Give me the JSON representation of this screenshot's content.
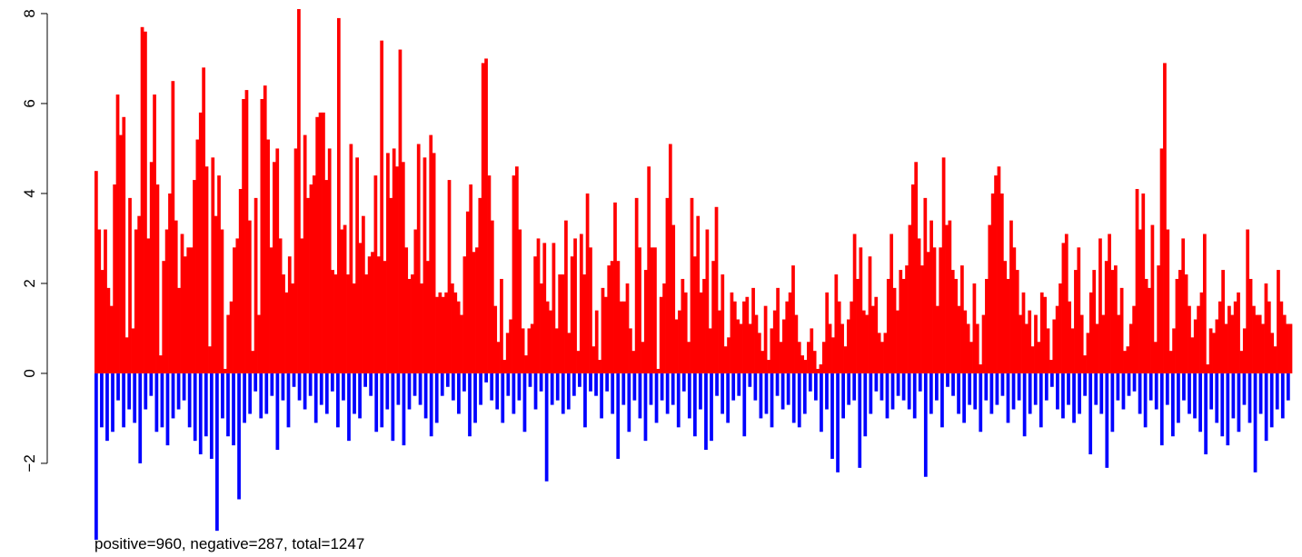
{
  "caption": "positive=960, negative=287, total=1247",
  "chart_data": {
    "type": "bar",
    "title": "",
    "xlabel": "",
    "ylabel": "",
    "ylim": [
      -3.8,
      8.1
    ],
    "y_ticks": [
      -2,
      0,
      2,
      4,
      6,
      8
    ],
    "y_tick_labels": [
      "−2",
      "0",
      "2",
      "4",
      "6",
      "8"
    ],
    "x_axis_shown": false,
    "grid": false,
    "colors": {
      "positive": "#ff0000",
      "negative": "#0000ff"
    },
    "n_bars": 1247,
    "positive_count": 960,
    "negative_count": 287,
    "series": [
      {
        "name": "positive",
        "values": [
          4.5,
          3.2,
          2.3,
          3.2,
          1.9,
          1.5,
          4.2,
          6.2,
          5.3,
          5.7,
          0.8,
          3.9,
          1.0,
          3.2,
          3.5,
          7.7,
          7.6,
          3.0,
          4.7,
          6.2,
          4.2,
          0.4,
          2.5,
          3.2,
          4.0,
          6.5,
          3.4,
          1.9,
          3.1,
          2.6,
          2.8,
          2.8,
          4.3,
          5.2,
          5.8,
          6.8,
          4.6,
          0.6,
          4.8,
          3.5,
          4.4,
          3.2,
          0.1,
          1.3,
          1.6,
          2.8,
          3.0,
          4.1,
          6.1,
          6.3,
          3.4,
          0.5,
          3.9,
          1.3,
          6.1,
          6.4,
          5.2,
          2.8,
          4.7,
          5.0,
          3.0,
          2.2,
          1.8,
          2.6,
          2.0,
          5.0,
          8.1,
          3.0,
          5.3,
          3.9,
          4.2,
          4.4,
          5.7,
          5.8,
          5.8,
          4.3,
          5.0,
          2.3,
          2.2,
          7.9,
          3.2,
          3.3,
          2.2,
          5.1,
          2.0,
          4.8,
          2.9,
          3.5,
          2.2,
          2.6,
          2.7,
          4.4,
          2.6,
          7.4,
          2.5,
          4.9,
          3.9,
          5.0,
          4.6,
          7.2,
          4.7,
          2.8,
          2.1,
          2.2,
          3.2,
          5.1,
          2.0,
          4.8,
          2.5,
          5.3,
          4.9,
          1.7,
          1.8,
          1.7,
          1.8,
          4.3,
          2.0,
          1.8,
          1.6,
          1.3,
          2.6,
          3.6,
          4.2,
          2.7,
          2.8,
          3.9,
          6.9,
          7.0,
          4.4,
          3.4,
          1.5,
          0.7,
          2.1,
          0.3,
          0.9,
          1.2,
          4.4,
          4.6,
          3.2,
          1.0,
          0.4,
          1.0,
          1.1,
          2.6,
          3.0,
          2.0,
          2.9,
          1.6,
          1.4,
          2.9,
          1.0,
          2.2,
          2.2,
          3.4,
          0.9,
          2.6,
          3.0,
          0.5,
          3.1,
          2.2,
          4.0,
          2.8,
          0.6,
          1.4,
          0.3,
          1.9,
          1.7,
          2.4,
          2.5,
          3.8,
          2.5,
          1.6,
          1.6,
          2.0,
          1.0,
          0.5,
          3.9,
          2.8,
          0.7,
          2.3,
          4.6,
          2.8,
          2.8,
          0.1,
          1.7,
          2.0,
          3.9,
          5.1,
          3.3,
          1.2,
          1.4,
          2.1,
          1.8,
          0.7,
          3.9,
          2.6,
          3.5,
          1.8,
          2.1,
          3.2,
          1.0,
          2.5,
          3.7,
          1.4,
          2.2,
          0.6,
          0.8,
          1.8,
          1.6,
          1.2,
          1.1,
          1.6,
          1.7,
          1.1,
          1.9,
          1.3,
          0.9,
          0.5,
          1.5,
          0.3,
          1.0,
          1.4,
          1.9,
          0.7,
          1.2,
          1.6,
          1.8,
          2.4,
          1.3,
          0.7,
          0.4,
          0.3,
          0.7,
          1.0,
          0.5,
          0.1,
          0.2,
          0.7,
          1.8,
          1.1,
          0.8,
          2.2,
          1.6,
          1.1,
          0.6,
          1.2,
          1.6,
          3.1,
          2.1,
          2.8,
          1.4,
          1.3,
          2.6,
          1.5,
          1.7,
          0.9,
          0.7,
          0.9,
          2.1,
          3.1,
          1.9,
          1.4,
          2.3,
          2.1,
          2.4,
          3.3,
          4.2,
          4.7,
          3.0,
          2.4,
          3.9,
          2.7,
          3.4,
          2.8,
          1.5,
          2.8,
          4.8,
          3.3,
          3.4,
          2.3,
          2.1,
          1.5,
          2.4,
          1.4,
          1.1,
          0.7,
          2.0,
          1.1,
          0.2,
          1.3,
          2.1,
          3.3,
          4.0,
          4.4,
          4.6,
          4.0,
          2.5,
          2.1,
          3.4,
          2.8,
          2.3,
          1.3,
          1.8,
          1.1,
          1.4,
          0.6,
          1.3,
          0.7,
          1.8,
          1.7,
          1.0,
          0.3,
          1.2,
          1.5,
          2.0,
          2.9,
          3.1,
          1.6,
          1.0,
          2.3,
          2.8,
          1.3,
          0.4,
          0.9,
          1.8,
          2.3,
          1.1,
          3.0,
          1.3,
          2.5,
          3.1,
          2.3,
          2.4,
          1.3,
          1.9,
          0.5,
          0.6,
          1.1,
          1.5,
          4.1,
          3.2,
          4.0,
          2.1,
          1.9,
          3.3,
          0.7,
          2.4,
          5.0,
          6.9,
          3.2,
          0.5,
          1.0,
          2.1,
          2.3,
          3.0,
          2.2,
          1.5,
          0.8,
          1.2,
          1.5,
          1.8,
          3.1,
          0.2,
          1.0,
          0.9,
          1.2,
          1.6,
          2.3,
          1.1,
          1.5,
          1.3,
          1.6,
          1.8,
          0.5,
          1.0,
          3.2,
          2.1,
          1.5,
          1.3,
          1.3,
          1.1,
          2.0,
          1.6,
          0.9,
          0.6,
          2.3,
          1.6,
          1.3,
          1.1,
          1.1
        ]
      },
      {
        "name": "negative",
        "values": [
          -3.7,
          -1.2,
          -1.5,
          -1.3,
          -0.6,
          -1.2,
          -0.8,
          -1.1,
          -2.0,
          -0.8,
          -0.5,
          -1.3,
          -1.2,
          -1.6,
          -1.0,
          -0.8,
          -0.6,
          -1.2,
          -1.5,
          -1.8,
          -1.4,
          -1.9,
          -3.5,
          -1.0,
          -1.4,
          -1.6,
          -2.8,
          -1.1,
          -0.9,
          -0.4,
          -1.0,
          -0.9,
          -0.5,
          -1.7,
          -0.6,
          -1.2,
          -0.3,
          -0.6,
          -0.8,
          -0.5,
          -1.1,
          -0.7,
          -0.9,
          -0.4,
          -1.2,
          -0.6,
          -1.5,
          -0.9,
          -1.0,
          -0.3,
          -0.5,
          -1.3,
          -1.2,
          -0.8,
          -1.5,
          -0.7,
          -1.6,
          -0.8,
          -0.5,
          -0.7,
          -1.0,
          -1.4,
          -1.1,
          -0.5,
          -0.3,
          -0.6,
          -0.9,
          -0.4,
          -1.4,
          -1.1,
          -0.7,
          -0.2,
          -0.6,
          -0.8,
          -1.1,
          -0.5,
          -0.9,
          -0.6,
          -1.3,
          -0.3,
          -0.8,
          -0.4,
          -2.4,
          -0.7,
          -0.6,
          -0.9,
          -0.8,
          -0.5,
          -0.3,
          -1.2,
          -0.4,
          -0.5,
          -1.0,
          -0.4,
          -0.9,
          -1.9,
          -0.7,
          -1.3,
          -0.6,
          -1.0,
          -1.5,
          -0.7,
          -1.1,
          -0.6,
          -0.9,
          -0.7,
          -1.2,
          -0.4,
          -1.0,
          -1.4,
          -0.8,
          -1.7,
          -1.5,
          -0.5,
          -0.9,
          -1.1,
          -0.6,
          -0.5,
          -1.4,
          -0.3,
          -0.6,
          -1.0,
          -0.9,
          -1.2,
          -0.5,
          -0.8,
          -0.7,
          -1.1,
          -1.2,
          -0.9,
          -0.4,
          -0.6,
          -1.3,
          -0.8,
          -1.9,
          -2.2,
          -1.0,
          -0.7,
          -0.6,
          -2.1,
          -1.4,
          -0.9,
          -0.4,
          -0.6,
          -1.0,
          -0.8,
          -0.5,
          -0.6,
          -0.8,
          -1.0,
          -0.4,
          -2.3,
          -0.9,
          -0.6,
          -1.2,
          -0.3,
          -0.5,
          -0.9,
          -1.1,
          -0.7,
          -0.8,
          -1.3,
          -0.6,
          -0.9,
          -0.7,
          -0.5,
          -1.1,
          -0.8,
          -0.6,
          -1.4,
          -0.9,
          -0.7,
          -1.2,
          -0.6,
          -0.3,
          -0.8,
          -1.0,
          -0.7,
          -1.1,
          -0.9,
          -0.5,
          -1.8,
          -0.7,
          -0.9,
          -2.1,
          -1.3,
          -0.6,
          -0.8,
          -0.5,
          -0.4,
          -0.9,
          -1.2,
          -0.6,
          -0.8,
          -1.6,
          -0.7,
          -1.4,
          -1.1,
          -0.6,
          -0.9,
          -1.0,
          -1.3,
          -1.8,
          -0.8,
          -1.1,
          -1.4,
          -1.6,
          -1.0,
          -1.3,
          -0.7,
          -1.1,
          -2.2,
          -0.9,
          -1.5,
          -1.2,
          -0.8,
          -1.0,
          -0.6
        ]
      }
    ]
  }
}
